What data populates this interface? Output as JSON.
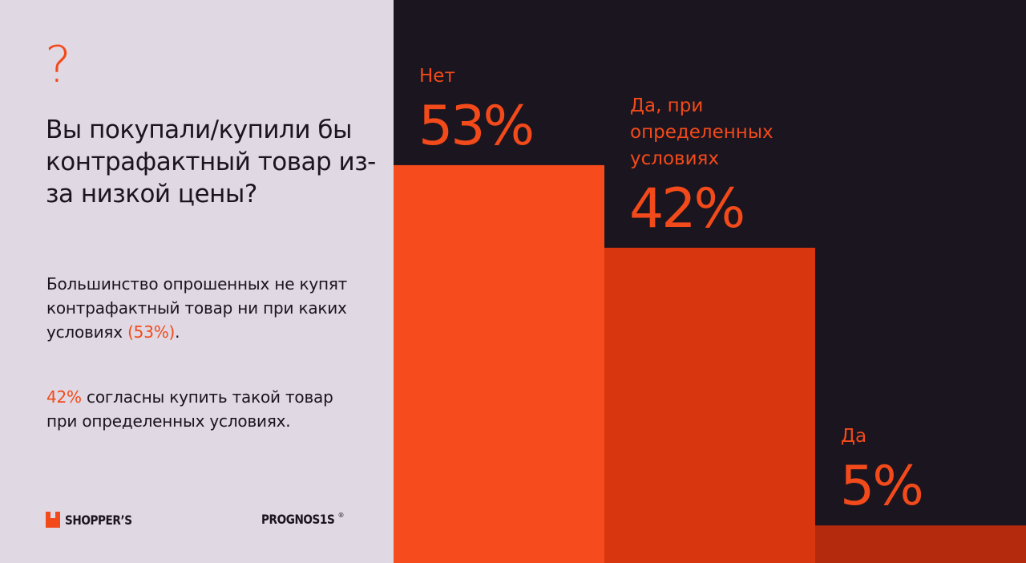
{
  "left_panel": {
    "icon": "question-mark-icon",
    "icon_glyph": "?",
    "headline": "Вы покупали/купили бы контрафактный товар из-за низкой цены?",
    "paragraph1": {
      "text": "Большинство опрошенных не купят контрафактный товар ни при каких условиях ",
      "highlight": "(53%)",
      "tail": "."
    },
    "paragraph2": {
      "highlight": "42%",
      "text": " согласны купить такой товар при определенных условиях."
    },
    "logos": {
      "shoppers": "SHOPPER’S",
      "prognosis": "PROGNOS1S",
      "prognosis_mark": "®"
    }
  },
  "colors": {
    "accent": "#f24a1a",
    "background_dark": "#1a151f",
    "background_light": "#e0d8e2",
    "bar_no": "#f64b1c",
    "bar_conditional": "#d8360f",
    "bar_yes": "#b42a0c"
  },
  "chart_data": {
    "type": "bar",
    "categories": [
      "Нет",
      "Да, при определенных условиях",
      "Да"
    ],
    "values": [
      53,
      42,
      5
    ],
    "value_labels": [
      "53%",
      "42%",
      "5%"
    ],
    "label_lines": [
      [
        "Нет"
      ],
      [
        "Да, при",
        "определенных",
        "условиях"
      ],
      [
        "Да"
      ]
    ],
    "ylim": [
      0,
      100
    ],
    "grid": false,
    "legend": "none"
  }
}
